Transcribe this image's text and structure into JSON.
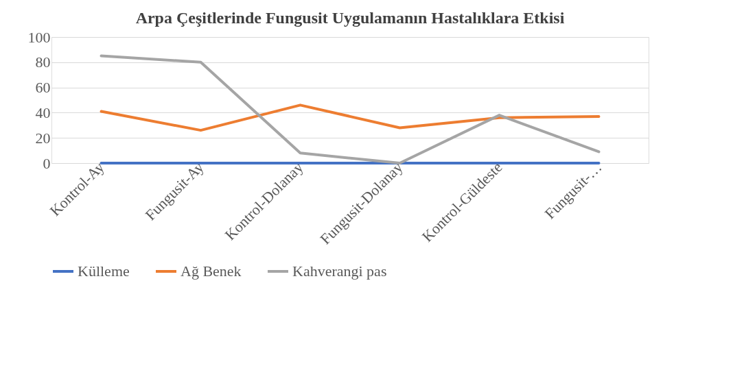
{
  "chart_data": {
    "type": "line",
    "title": "Arpa Çeşitlerinde Fungusit Uygulamanın Hastalıklara Etkisi",
    "categories": [
      "Kontrol-Ay",
      "Fungusit-Ay",
      "Kontrol-Dolanay",
      "Fungusit-Dolanay",
      "Kontrol-Güldeste",
      "Fungusit-…"
    ],
    "series": [
      {
        "name": "Külleme",
        "color": "#4472c4",
        "values": [
          0,
          0,
          0,
          0,
          0,
          0
        ]
      },
      {
        "name": "Ağ Benek",
        "color": "#ed7d31",
        "values": [
          41,
          26,
          46,
          28,
          36,
          37
        ]
      },
      {
        "name": "Kahverangi pas",
        "color": "#a5a5a5",
        "values": [
          85,
          80,
          8,
          0,
          38,
          9
        ]
      }
    ],
    "ylim": [
      0,
      100
    ],
    "yticks": [
      0,
      20,
      40,
      60,
      80,
      100
    ],
    "grid": "y",
    "legend": "bottom",
    "marker": "none",
    "line_style": "solid"
  }
}
